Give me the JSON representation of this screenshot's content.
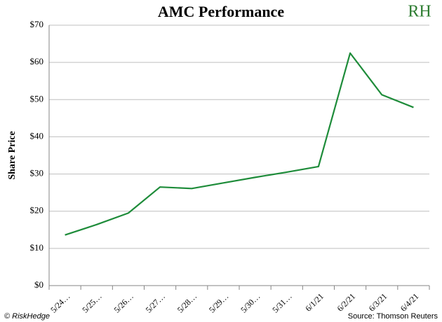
{
  "chart_data": {
    "type": "line",
    "title": "AMC Performance",
    "logo": "RH",
    "y_label": "Share Price",
    "footer_left": "© RiskHedge",
    "source": "Source: Thomson Reuters",
    "categories": [
      "5/24…",
      "5/25…",
      "5/26…",
      "5/27…",
      "5/28…",
      "5/29…",
      "5/30…",
      "5/31…",
      "6/1/21",
      "6/2/21",
      "6/3/21",
      "6/4/21"
    ],
    "series": [
      {
        "name": "AMC",
        "color": "#1e8c3a",
        "values": [
          13.6,
          16.4,
          19.5,
          26.5,
          26.1,
          27.6,
          29.1,
          30.5,
          32.0,
          62.5,
          51.3,
          47.9
        ]
      }
    ],
    "ylim": [
      0,
      70
    ],
    "yticks": [
      {
        "value": 0,
        "label": "$0"
      },
      {
        "value": 10,
        "label": "$10"
      },
      {
        "value": 20,
        "label": "$20"
      },
      {
        "value": 30,
        "label": "$30"
      },
      {
        "value": 40,
        "label": "$40"
      },
      {
        "value": 50,
        "label": "$50"
      },
      {
        "value": 60,
        "label": "$60"
      },
      {
        "value": 70,
        "label": "$70"
      }
    ],
    "grid": true
  }
}
